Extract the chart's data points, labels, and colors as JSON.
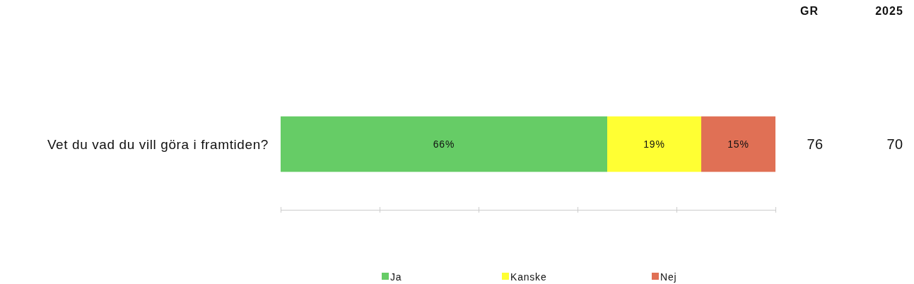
{
  "chart_data": {
    "type": "bar",
    "orientation": "horizontal",
    "stacked": true,
    "categories": [
      "Vet du vad du vill göra i framtiden?"
    ],
    "series": [
      {
        "name": "Ja",
        "color": "#66cc66",
        "values": [
          66
        ],
        "value_labels": [
          "66%"
        ]
      },
      {
        "name": "Kanske",
        "color": "#ffff33",
        "values": [
          19
        ],
        "value_labels": [
          "19%"
        ]
      },
      {
        "name": "Nej",
        "color": "#e07055",
        "values": [
          15
        ],
        "value_labels": [
          "15%"
        ]
      }
    ],
    "xlim": [
      0,
      100
    ],
    "tick_labels": "y",
    "legend": "bottom",
    "annotations": [
      "GR",
      "2025",
      "76",
      "70"
    ]
  }
}
